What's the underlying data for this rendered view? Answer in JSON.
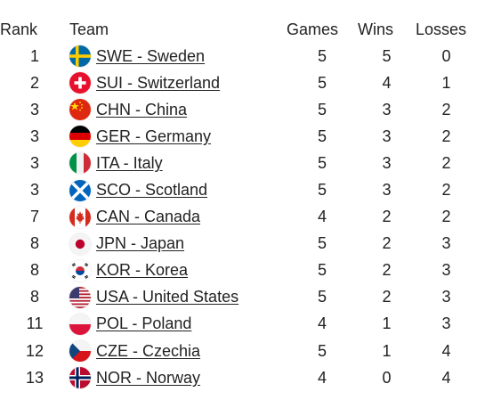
{
  "headers": {
    "rank": "Rank",
    "team": "Team",
    "games": "Games",
    "wins": "Wins",
    "losses": "Losses"
  },
  "rows": [
    {
      "rank": "1",
      "team": "SWE - Sweden",
      "games": "5",
      "wins": "5",
      "losses": "0",
      "flag": "sweden-flag-icon"
    },
    {
      "rank": "2",
      "team": "SUI - Switzerland",
      "games": "5",
      "wins": "4",
      "losses": "1",
      "flag": "switzerland-flag-icon"
    },
    {
      "rank": "3",
      "team": "CHN - China",
      "games": "5",
      "wins": "3",
      "losses": "2",
      "flag": "china-flag-icon"
    },
    {
      "rank": "3",
      "team": "GER - Germany",
      "games": "5",
      "wins": "3",
      "losses": "2",
      "flag": "germany-flag-icon"
    },
    {
      "rank": "3",
      "team": "ITA - Italy",
      "games": "5",
      "wins": "3",
      "losses": "2",
      "flag": "italy-flag-icon"
    },
    {
      "rank": "3",
      "team": "SCO - Scotland",
      "games": "5",
      "wins": "3",
      "losses": "2",
      "flag": "scotland-flag-icon"
    },
    {
      "rank": "7",
      "team": "CAN - Canada",
      "games": "4",
      "wins": "2",
      "losses": "2",
      "flag": "canada-flag-icon"
    },
    {
      "rank": "8",
      "team": "JPN - Japan",
      "games": "5",
      "wins": "2",
      "losses": "3",
      "flag": "japan-flag-icon"
    },
    {
      "rank": "8",
      "team": "KOR - Korea",
      "games": "5",
      "wins": "2",
      "losses": "3",
      "flag": "korea-flag-icon"
    },
    {
      "rank": "8",
      "team": "USA - United States",
      "games": "5",
      "wins": "2",
      "losses": "3",
      "flag": "usa-flag-icon"
    },
    {
      "rank": "11",
      "team": "POL - Poland",
      "games": "4",
      "wins": "1",
      "losses": "3",
      "flag": "poland-flag-icon"
    },
    {
      "rank": "12",
      "team": "CZE - Czechia",
      "games": "5",
      "wins": "1",
      "losses": "4",
      "flag": "czechia-flag-icon"
    },
    {
      "rank": "13",
      "team": "NOR - Norway",
      "games": "4",
      "wins": "0",
      "losses": "4",
      "flag": "norway-flag-icon"
    }
  ]
}
